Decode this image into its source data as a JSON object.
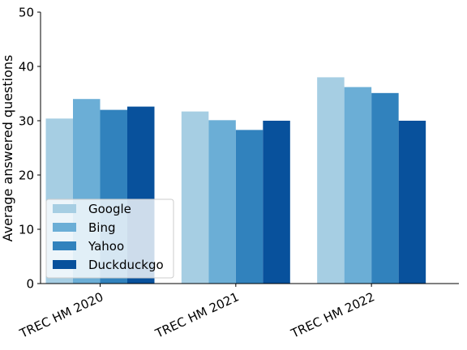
{
  "chart_data": {
    "type": "bar",
    "categories": [
      "TREC HM 2020",
      "TREC HM 2021",
      "TREC HM 2022"
    ],
    "series": [
      {
        "name": "Google",
        "color": "#a6cee3",
        "values": [
          30.4,
          31.7,
          38.0
        ]
      },
      {
        "name": "Bing",
        "color": "#6baed6",
        "values": [
          34.0,
          30.1,
          36.2
        ]
      },
      {
        "name": "Yahoo",
        "color": "#3182bd",
        "values": [
          32.0,
          28.3,
          35.1
        ]
      },
      {
        "name": "Duckduckgo",
        "color": "#08519c",
        "values": [
          32.6,
          30.0,
          30.0
        ]
      }
    ],
    "title": "",
    "xlabel": "",
    "ylabel": "Average answered questions",
    "ylim": [
      0,
      50
    ],
    "yticks": [
      0,
      10,
      20,
      30,
      40,
      50
    ],
    "grid": false,
    "legend_position": "lower-left"
  }
}
